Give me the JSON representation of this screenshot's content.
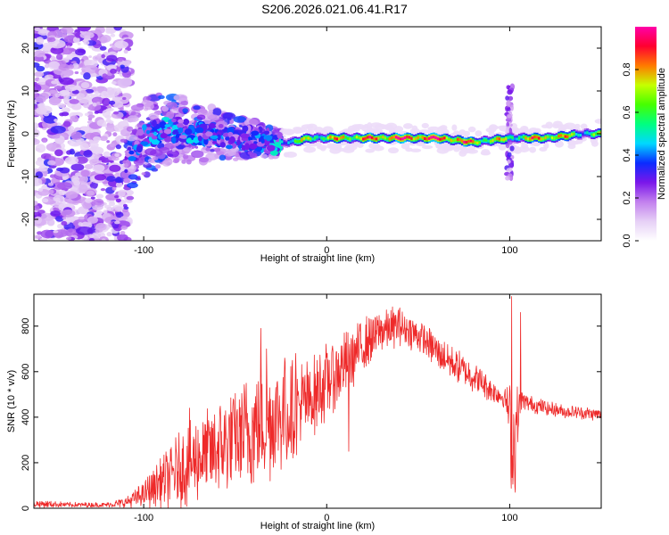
{
  "figure_title": "S206.2026.021.06.41.R17",
  "chart_data": [
    {
      "type": "heatmap",
      "title": "S206.2026.021.06.41.R17",
      "xlabel": "Height of straight line (km)",
      "ylabel": "Frequency (Hz)",
      "xlim": [
        -160,
        150
      ],
      "ylim": [
        -25,
        25
      ],
      "xticks": [
        -100,
        0,
        100
      ],
      "yticks": [
        -20,
        -10,
        0,
        10,
        20
      ],
      "colorbar": {
        "label": "Normalized spectral amplitude",
        "range": [
          0,
          1
        ],
        "ticks": [
          0.0,
          0.2,
          0.4,
          0.6,
          0.8
        ],
        "tick_labels": [
          "0.0",
          "0.2",
          "0.4",
          "0.6",
          "0.8"
        ],
        "colors": [
          "#ffffff",
          "#e6d0f6",
          "#c280ee",
          "#7a16ea",
          "#0a2cff",
          "#00d8ff",
          "#00ff80",
          "#46ff00",
          "#c6ff00",
          "#ff7a00",
          "#ff0030",
          "#ff00a8"
        ]
      },
      "features": {
        "noise_region_x": [
          -160,
          -108
        ],
        "transition_x": [
          -108,
          -25
        ],
        "ridge_start_x": -25,
        "ridge_frequency_hz": -1,
        "spike_x": 100,
        "spike_frequency_range": [
          -11,
          11
        ]
      },
      "ridge_profile": [
        {
          "x": -110,
          "freq": -7,
          "amp": 0.35
        },
        {
          "x": -100,
          "freq": -1,
          "amp": 0.42
        },
        {
          "x": -90,
          "freq": 1,
          "amp": 0.48
        },
        {
          "x": -80,
          "freq": 1,
          "amp": 0.45
        },
        {
          "x": -70,
          "freq": 0,
          "amp": 0.42
        },
        {
          "x": -60,
          "freq": 0,
          "amp": 0.4
        },
        {
          "x": -50,
          "freq": -1,
          "amp": 0.38
        },
        {
          "x": -40,
          "freq": -1,
          "amp": 0.4
        },
        {
          "x": -30,
          "freq": -2,
          "amp": 0.45
        },
        {
          "x": -20,
          "freq": -2,
          "amp": 0.55
        },
        {
          "x": -10,
          "freq": -1,
          "amp": 0.62
        },
        {
          "x": 0,
          "freq": -1,
          "amp": 0.68
        },
        {
          "x": 20,
          "freq": -1,
          "amp": 0.78
        },
        {
          "x": 40,
          "freq": -1,
          "amp": 0.88
        },
        {
          "x": 60,
          "freq": -1,
          "amp": 0.9
        },
        {
          "x": 80,
          "freq": -2,
          "amp": 0.75
        },
        {
          "x": 100,
          "freq": -1,
          "amp": 0.6
        },
        {
          "x": 120,
          "freq": -1,
          "amp": 0.82
        },
        {
          "x": 140,
          "freq": 0,
          "amp": 0.55
        }
      ]
    },
    {
      "type": "line",
      "xlabel": "Height of straight line (km)",
      "ylabel": "SNR (10 * v/v)",
      "xlim": [
        -160,
        150
      ],
      "ylim": [
        0,
        940
      ],
      "xticks": [
        -100,
        0,
        100
      ],
      "yticks": [
        0,
        200,
        400,
        600,
        800
      ],
      "series": [
        {
          "name": "SNR",
          "color": "#ee2a2a",
          "envelope": {
            "x": [
              -160,
              -140,
              -120,
              -110,
              -100,
              -90,
              -80,
              -70,
              -60,
              -50,
              -40,
              -30,
              -20,
              -10,
              0,
              10,
              20,
              30,
              40,
              50,
              60,
              70,
              80,
              90,
              98,
              102,
              106,
              110,
              120,
              130,
              140,
              150
            ],
            "base": [
              20,
              15,
              15,
              25,
              60,
              120,
              170,
              220,
              260,
              300,
              350,
              390,
              420,
              470,
              560,
              630,
              720,
              780,
              800,
              760,
              690,
              630,
              580,
              520,
              480,
              280,
              470,
              460,
              440,
              425,
              420,
              410
            ],
            "amp": [
              18,
              12,
              12,
              25,
              60,
              120,
              180,
              200,
              220,
              240,
              280,
              280,
              240,
              200,
              180,
              150,
              130,
              110,
              90,
              80,
              80,
              80,
              70,
              60,
              50,
              350,
              60,
              40,
              35,
              30,
              30,
              30
            ]
          },
          "peaks": [
            {
              "x": -75,
              "y": 440
            },
            {
              "x": -36,
              "y": 790
            },
            {
              "x": -33,
              "y": 700
            },
            {
              "x": -23,
              "y": 660
            },
            {
              "x": -17,
              "y": 680
            },
            {
              "x": 12,
              "y": 250
            },
            {
              "x": 40,
              "y": 880
            },
            {
              "x": 101,
              "y": 930
            },
            {
              "x": 103,
              "y": 70
            },
            {
              "x": 106,
              "y": 860
            }
          ]
        }
      ]
    }
  ]
}
